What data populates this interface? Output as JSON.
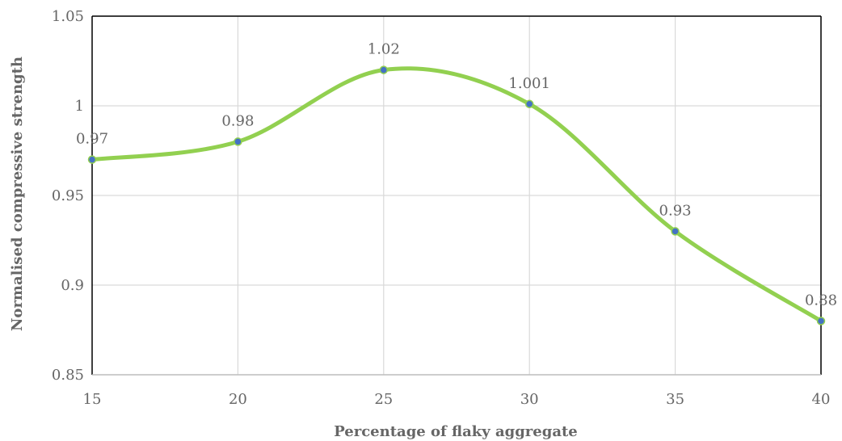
{
  "chart_data": {
    "type": "line",
    "smooth": true,
    "title": "",
    "xlabel": "Percentage of flaky aggregate",
    "ylabel": "Normalised compressive strength",
    "x": [
      15,
      20,
      25,
      30,
      35,
      40
    ],
    "x_tick_labels": [
      "15",
      "20",
      "25",
      "30",
      "35",
      "40"
    ],
    "xlim": [
      15,
      40
    ],
    "ylim": [
      0.85,
      1.05
    ],
    "y_ticks": [
      0.85,
      0.9,
      0.95,
      1.0,
      1.05
    ],
    "y_tick_labels": [
      "0.85",
      "0.9",
      "0.95",
      "1",
      "1.05"
    ],
    "grid": true,
    "legend": "none",
    "series": [
      {
        "values": [
          0.97,
          0.98,
          1.02,
          1.001,
          0.93,
          0.88
        ],
        "data_labels": [
          "0.97",
          "0.98",
          "1.02",
          "1.001",
          "0.93",
          "0.88"
        ],
        "color": "#92D050",
        "marker_color": "#4472C4"
      }
    ],
    "colors": {
      "grid": "#d9d9d9",
      "axis": "#000000",
      "text": "#666666"
    }
  }
}
